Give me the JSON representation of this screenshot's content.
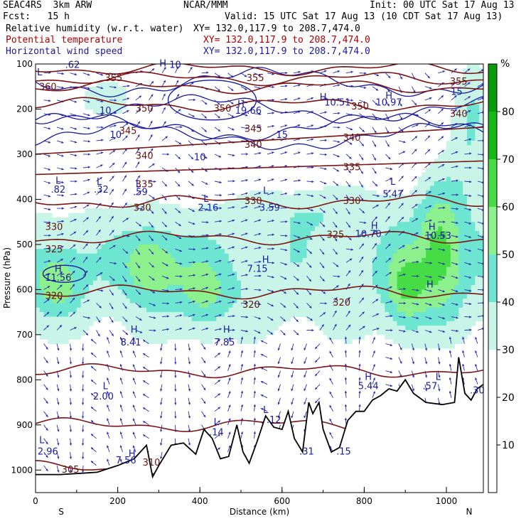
{
  "header": {
    "model": "SEAC4RS  3km ARW",
    "org": "NCAR/MMM",
    "init": "Init: 00 UTC Sat 17 Aug 13",
    "fcst": "Fcst:   15 h",
    "valid": "Valid: 15 UTC Sat 17 Aug 13 (10 CDT Sat 17 Aug 13)",
    "fields": [
      {
        "name": "Relative humidity (w.r.t. water)",
        "xy": "XY= 132.0,117.9 to 208.7,474.0",
        "color": "#000000"
      },
      {
        "name": "Potential temperature",
        "xy": "XY= 132.0,117.9 to 208.7,474.0",
        "color": "#b00000"
      },
      {
        "name": "Horizontal wind speed",
        "xy": "XY= 132.0,117.9 to 208.7,474.0",
        "color": "#1a1aa0"
      }
    ]
  },
  "chart_data": {
    "type": "cross-section",
    "xlabel": "Distance (km)",
    "ylabel": "Pressure (hPa)",
    "xlim": [
      0,
      1090
    ],
    "ylim": [
      1050,
      100
    ],
    "xticks": [
      "0",
      "200",
      "400",
      "600",
      "800",
      "1000"
    ],
    "xtick_values": [
      0,
      200,
      400,
      600,
      800,
      1000
    ],
    "yticks": [
      "100",
      "200",
      "300",
      "400",
      "500",
      "600",
      "700",
      "800",
      "900",
      "1000"
    ],
    "ytick_values": [
      100,
      200,
      300,
      400,
      500,
      600,
      700,
      800,
      900,
      1000
    ],
    "end_labels": {
      "left": "S",
      "right": "N"
    },
    "colorbar": {
      "unit": "%",
      "ticks": [
        "10",
        "20",
        "30",
        "40",
        "50",
        "60",
        "70",
        "80"
      ],
      "tick_values": [
        10,
        20,
        30,
        40,
        50,
        60,
        70,
        80
      ],
      "bins": [
        {
          "min": 30,
          "max": 40,
          "color": "#c8f5e8"
        },
        {
          "min": 40,
          "max": 50,
          "color": "#6de5d0"
        },
        {
          "min": 50,
          "max": 60,
          "color": "#8cf08c"
        },
        {
          "min": 60,
          "max": 70,
          "color": "#46dc46"
        },
        {
          "min": 70,
          "max": 80,
          "color": "#14b914"
        },
        {
          "min": 80,
          "max": 90,
          "color": "#0a9b0a"
        }
      ]
    },
    "theta_labels": [
      {
        "text": "360",
        "x": 30,
        "p": 152
      },
      {
        "text": "355",
        "x": 190,
        "p": 132
      },
      {
        "text": "355",
        "x": 535,
        "p": 132
      },
      {
        "text": "350",
        "x": 265,
        "p": 200
      },
      {
        "text": "350",
        "x": 455,
        "p": 200
      },
      {
        "text": "350",
        "x": 790,
        "p": 195
      },
      {
        "text": "345",
        "x": 225,
        "p": 250
      },
      {
        "text": "345",
        "x": 530,
        "p": 245
      },
      {
        "text": "340",
        "x": 265,
        "p": 305
      },
      {
        "text": "340",
        "x": 530,
        "p": 280
      },
      {
        "text": "340",
        "x": 770,
        "p": 265
      },
      {
        "text": "340",
        "x": 1030,
        "p": 212
      },
      {
        "text": "335",
        "x": 265,
        "p": 368
      },
      {
        "text": "335",
        "x": 770,
        "p": 330
      },
      {
        "text": "330",
        "x": 260,
        "p": 420
      },
      {
        "text": "330",
        "x": 530,
        "p": 405
      },
      {
        "text": "330",
        "x": 770,
        "p": 405
      },
      {
        "text": "330",
        "x": 45,
        "p": 462
      },
      {
        "text": "325",
        "x": 45,
        "p": 512
      },
      {
        "text": "325",
        "x": 730,
        "p": 480
      },
      {
        "text": "320",
        "x": 45,
        "p": 615
      },
      {
        "text": "320",
        "x": 525,
        "p": 635
      },
      {
        "text": "320",
        "x": 745,
        "p": 630
      },
      {
        "text": "305",
        "x": 85,
        "p": 1000
      },
      {
        "text": "310",
        "x": 282,
        "p": 985
      },
      {
        "text": "355",
        "x": 1030,
        "p": 140
      }
    ],
    "speed_labels": [
      {
        "text": "10",
        "x": 170,
        "p": 205
      },
      {
        "text": "10",
        "x": 195,
        "p": 258
      },
      {
        "text": "10",
        "x": 400,
        "p": 308
      },
      {
        "text": "15",
        "x": 600,
        "p": 258
      },
      {
        "text": "19.66",
        "x": 518,
        "p": 205
      },
      {
        "text": "10.51",
        "x": 735,
        "p": 187
      },
      {
        "text": "10.97",
        "x": 860,
        "p": 187
      },
      {
        "text": "5.47",
        "x": 870,
        "p": 390
      },
      {
        "text": "10.70",
        "x": 810,
        "p": 478
      },
      {
        "text": "10.53",
        "x": 980,
        "p": 482
      },
      {
        "text": "11.56",
        "x": 55,
        "p": 575
      },
      {
        "text": "7.15",
        "x": 540,
        "p": 555
      },
      {
        "text": "8.41",
        "x": 232,
        "p": 718
      },
      {
        "text": "7.85",
        "x": 460,
        "p": 718
      },
      {
        "text": "2.00",
        "x": 165,
        "p": 838
      },
      {
        "text": "2.16",
        "x": 420,
        "p": 420
      },
      {
        "text": ".82",
        "x": 55,
        "p": 380
      },
      {
        "text": ".32",
        "x": 160,
        "p": 380
      },
      {
        "text": ".59",
        "x": 255,
        "p": 385
      },
      {
        "text": "3.59",
        "x": 570,
        "p": 420
      },
      {
        "text": ".14",
        "x": 440,
        "p": 918
      },
      {
        "text": ".12",
        "x": 580,
        "p": 890
      },
      {
        "text": ".31",
        "x": 660,
        "p": 960
      },
      {
        "text": ".15",
        "x": 750,
        "p": 960
      },
      {
        "text": "5.44",
        "x": 810,
        "p": 815
      },
      {
        "text": ".57",
        "x": 960,
        "p": 815
      },
      {
        "text": ".30",
        "x": 1075,
        "p": 825
      },
      {
        "text": "7.56",
        "x": 220,
        "p": 980
      },
      {
        "text": "2.96",
        "x": 30,
        "p": 960
      },
      {
        "text": "15",
        "x": 1025,
        "p": 163
      },
      {
        "text": ".62",
        "x": 90,
        "p": 103
      },
      {
        "text": "10",
        "x": 340,
        "p": 103
      }
    ],
    "extrema": [
      {
        "text": "H",
        "x": 310,
        "p": 100
      },
      {
        "text": "L",
        "x": 10,
        "p": 120
      },
      {
        "text": "H",
        "x": 500,
        "p": 190
      },
      {
        "text": "H",
        "x": 700,
        "p": 175
      },
      {
        "text": "H",
        "x": 860,
        "p": 172
      },
      {
        "text": "L",
        "x": 55,
        "p": 360
      },
      {
        "text": "L",
        "x": 155,
        "p": 362
      },
      {
        "text": "L",
        "x": 250,
        "p": 367
      },
      {
        "text": "L",
        "x": 415,
        "p": 400
      },
      {
        "text": "L",
        "x": 560,
        "p": 382
      },
      {
        "text": "L",
        "x": 870,
        "p": 362
      },
      {
        "text": "H",
        "x": 825,
        "p": 460
      },
      {
        "text": "H",
        "x": 965,
        "p": 462
      },
      {
        "text": "H",
        "x": 55,
        "p": 555
      },
      {
        "text": "H",
        "x": 560,
        "p": 535
      },
      {
        "text": "H",
        "x": 960,
        "p": 590
      },
      {
        "text": "H",
        "x": 240,
        "p": 690
      },
      {
        "text": "H",
        "x": 465,
        "p": 690
      },
      {
        "text": "L",
        "x": 170,
        "p": 815
      },
      {
        "text": "L",
        "x": 440,
        "p": 895
      },
      {
        "text": "L",
        "x": 560,
        "p": 868
      },
      {
        "text": "H",
        "x": 810,
        "p": 795
      },
      {
        "text": "L",
        "x": 980,
        "p": 795
      },
      {
        "text": "L",
        "x": 15,
        "p": 935
      },
      {
        "text": "H",
        "x": 235,
        "p": 965
      }
    ]
  }
}
